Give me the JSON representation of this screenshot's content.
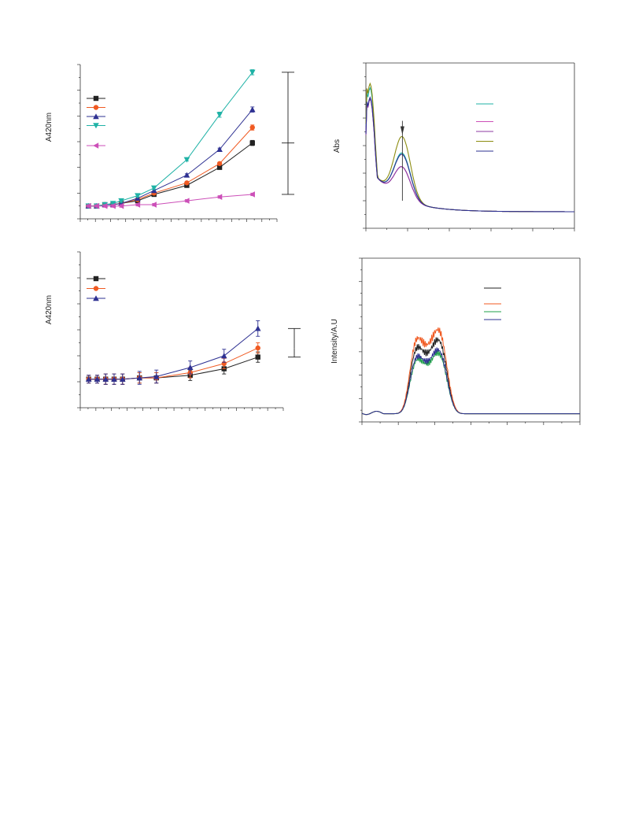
{
  "panels": {
    "a": {
      "ylabel": "A420nm"
    },
    "b": {
      "ylabel": "Abs"
    },
    "c": {
      "ylabel": "A420nm"
    },
    "d": {
      "ylabel": "Intensity/A.U"
    }
  },
  "chart_data": [
    {
      "id": "a",
      "type": "line",
      "xlabel": "",
      "ylabel": "A420nm",
      "xlim": [
        -1,
        23
      ],
      "ylim": [
        -0.1,
        1.1
      ],
      "x": [
        0,
        1,
        2,
        3,
        4,
        6,
        8,
        12,
        16,
        20
      ],
      "series": [
        {
          "color": "#222222",
          "marker": "square",
          "values": [
            0.0,
            0.0,
            0.01,
            0.01,
            0.02,
            0.04,
            0.09,
            0.16,
            0.3,
            0.49
          ],
          "err": [
            0.01,
            0.01,
            0.01,
            0.01,
            0.01,
            0.01,
            0.01,
            0.01,
            0.01,
            0.02
          ]
        },
        {
          "color": "#f05a22",
          "marker": "circle",
          "values": [
            0.0,
            0.0,
            0.01,
            0.01,
            0.02,
            0.05,
            0.1,
            0.18,
            0.33,
            0.61
          ],
          "err": [
            0.01,
            0.01,
            0.01,
            0.01,
            0.01,
            0.01,
            0.01,
            0.01,
            0.01,
            0.02
          ]
        },
        {
          "color": "#2e3192",
          "marker": "triangle-up",
          "values": [
            0.0,
            0.0,
            0.01,
            0.01,
            0.02,
            0.06,
            0.12,
            0.24,
            0.44,
            0.75
          ],
          "err": [
            0.01,
            0.01,
            0.01,
            0.01,
            0.01,
            0.01,
            0.01,
            0.01,
            0.01,
            0.02
          ]
        },
        {
          "color": "#1fb2a6",
          "marker": "triangle-down",
          "values": [
            0.0,
            0.0,
            0.01,
            0.02,
            0.04,
            0.08,
            0.14,
            0.36,
            0.71,
            1.04
          ],
          "err": [
            0.01,
            0.01,
            0.01,
            0.01,
            0.01,
            0.01,
            0.01,
            0.01,
            0.02,
            0.02
          ]
        },
        {
          "color": "#cc4fb8",
          "marker": "triangle-left",
          "values": [
            0.0,
            0.0,
            0.0,
            0.0,
            0.0,
            0.01,
            0.01,
            0.04,
            0.07,
            0.09
          ],
          "err": [
            0.01,
            0.01,
            0.01,
            0.01,
            0.01,
            0.01,
            0.01,
            0.01,
            0.01,
            0.01
          ]
        }
      ],
      "legend": "top-left",
      "brackets": [
        [
          1.04,
          0.49
        ],
        [
          0.49,
          0.09
        ]
      ]
    },
    {
      "id": "b",
      "type": "line",
      "xlabel": "",
      "ylabel": "Abs",
      "xlim": [
        300,
        700
      ],
      "ylim": [
        0,
        1.2
      ],
      "series": [
        {
          "color": "#1fb2a6",
          "peak1": 1.02,
          "peak2": 0.43
        },
        {
          "color": "#cc4fb8",
          "peak1": 0.94,
          "peak2": 0.33
        },
        {
          "color": "#8c3aa0",
          "peak1": 0.94,
          "peak2": 0.33
        },
        {
          "color": "#8c8c10",
          "peak1": 1.05,
          "peak2": 0.55
        },
        {
          "color": "#2e3192",
          "peak1": 0.95,
          "peak2": 0.42
        }
      ],
      "legend": "top-right",
      "arrow_at_x": 370
    },
    {
      "id": "c",
      "type": "line",
      "xlabel": "",
      "ylabel": "A420nm",
      "xlim": [
        -1,
        23
      ],
      "ylim": [
        -0.1,
        1.1
      ],
      "x": [
        0,
        1,
        2,
        3,
        4,
        6,
        8,
        12,
        16,
        20
      ],
      "series": [
        {
          "color": "#222222",
          "marker": "square",
          "values": [
            0.12,
            0.12,
            0.12,
            0.12,
            0.12,
            0.13,
            0.13,
            0.15,
            0.2,
            0.29
          ],
          "err": [
            0.03,
            0.03,
            0.04,
            0.04,
            0.04,
            0.04,
            0.04,
            0.04,
            0.04,
            0.04
          ]
        },
        {
          "color": "#f05a22",
          "marker": "circle",
          "values": [
            0.12,
            0.12,
            0.12,
            0.12,
            0.12,
            0.13,
            0.13,
            0.17,
            0.24,
            0.36
          ],
          "err": [
            0.03,
            0.03,
            0.04,
            0.04,
            0.04,
            0.04,
            0.04,
            0.04,
            0.04,
            0.04
          ]
        },
        {
          "color": "#2e3192",
          "marker": "triangle-up",
          "values": [
            0.12,
            0.12,
            0.12,
            0.12,
            0.12,
            0.13,
            0.14,
            0.21,
            0.3,
            0.51
          ],
          "err": [
            0.03,
            0.03,
            0.04,
            0.04,
            0.04,
            0.05,
            0.05,
            0.05,
            0.05,
            0.06
          ]
        }
      ],
      "legend": "top-left",
      "brackets": [
        [
          0.51,
          0.36
        ],
        [
          0.36,
          0.29
        ]
      ]
    },
    {
      "id": "d",
      "type": "line",
      "xlabel": "",
      "ylabel": "Intensity/A.U",
      "xlim": [
        200,
        800
      ],
      "ylim": [
        0,
        1.0
      ],
      "series": [
        {
          "color": "#222222",
          "scale": 0.88
        },
        {
          "color": "#f05a22",
          "scale": 1.0
        },
        {
          "color": "#1fa04a",
          "scale": 0.72
        },
        {
          "color": "#2e3192",
          "scale": 0.76
        }
      ],
      "legend": "top-right"
    }
  ]
}
